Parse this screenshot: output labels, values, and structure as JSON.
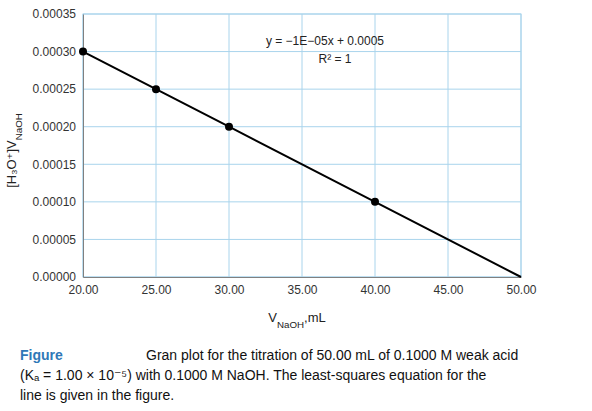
{
  "chart_data": {
    "type": "line",
    "title": "Figure",
    "subtitle": [
      "Gran plot for the titration of 50.00 mL of 0.1000 M weak acid",
      "(Kₐ = 1.00 × 10⁻⁵) with 0.1000 M NaOH. The least-squares equation for the",
      "line is given in the figure."
    ],
    "xlabel": [
      {
        "text": "V"
      },
      {
        "text": "NaOH",
        "sub": true
      },
      {
        "text": ",mL"
      }
    ],
    "ylabel": [
      {
        "text": "[H₃O⁺]V"
      },
      {
        "text": "NaOH",
        "sub": true
      }
    ],
    "annotations": [
      "y = −1E−05x + 0.0005",
      "R² = 1"
    ],
    "x": [
      20,
      25,
      30,
      40,
      50
    ],
    "series": [
      {
        "type": "line",
        "color": "#000000",
        "line_style": "solid",
        "marker": "none",
        "values": [
          0.0003,
          0.00025,
          0.0002,
          0.0001,
          0
        ]
      },
      {
        "type": "scatter",
        "color": "#000000",
        "marker": "circle",
        "values": [
          0.0003,
          0.00025,
          0.0002,
          0.0001,
          null
        ]
      }
    ],
    "xlim": [
      20,
      50
    ],
    "ylim": [
      0,
      0.00035
    ],
    "xticks": [
      {
        "value": 20,
        "label": "20.00"
      },
      {
        "value": 25,
        "label": "25.00"
      },
      {
        "value": 30,
        "label": "30.00"
      },
      {
        "value": 35,
        "label": "35.00"
      },
      {
        "value": 40,
        "label": "40.00"
      },
      {
        "value": 45,
        "label": "45.00"
      },
      {
        "value": 50,
        "label": "50.00"
      }
    ],
    "yticks": [
      {
        "value": 0,
        "label": "0.00000"
      },
      {
        "value": 5e-05,
        "label": "0.00005"
      },
      {
        "value": 0.0001,
        "label": "0.00010"
      },
      {
        "value": 0.00015,
        "label": "0.00015"
      },
      {
        "value": 0.0002,
        "label": "0.00020"
      },
      {
        "value": 0.00025,
        "label": "0.00025"
      },
      {
        "value": 0.0003,
        "label": "0.00030"
      },
      {
        "value": 0.00035,
        "label": "0.00035"
      }
    ],
    "grid": true
  }
}
